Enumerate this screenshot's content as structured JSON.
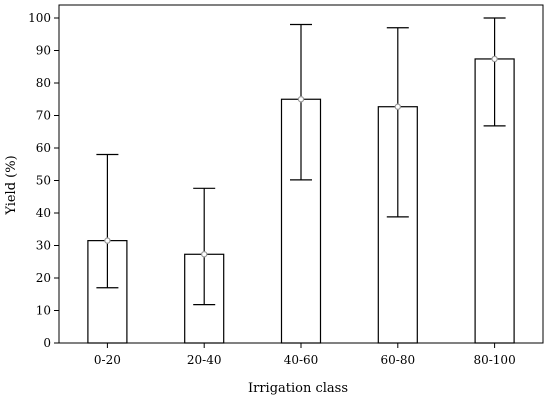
{
  "chart_data": {
    "type": "bar",
    "title": "",
    "xlabel": "Irrigation class",
    "ylabel": "Yield (%)",
    "categories": [
      "0-20",
      "20-40",
      "40-60",
      "60-80",
      "80-100"
    ],
    "values": [
      31.5,
      27.3,
      75.0,
      72.7,
      87.4
    ],
    "error_low": [
      17,
      11.8,
      50.2,
      38.8,
      66.8
    ],
    "error_high": [
      58,
      47.6,
      98.0,
      97.0,
      100
    ],
    "yticks": [
      0,
      10,
      20,
      30,
      40,
      50,
      60,
      70,
      80,
      90,
      100
    ],
    "ylim": [
      0,
      104
    ],
    "grid": false,
    "legend": "none",
    "colors": {
      "bar_fill": "#ffffff",
      "bar_stroke": "#000000",
      "marker": "#999999"
    }
  }
}
